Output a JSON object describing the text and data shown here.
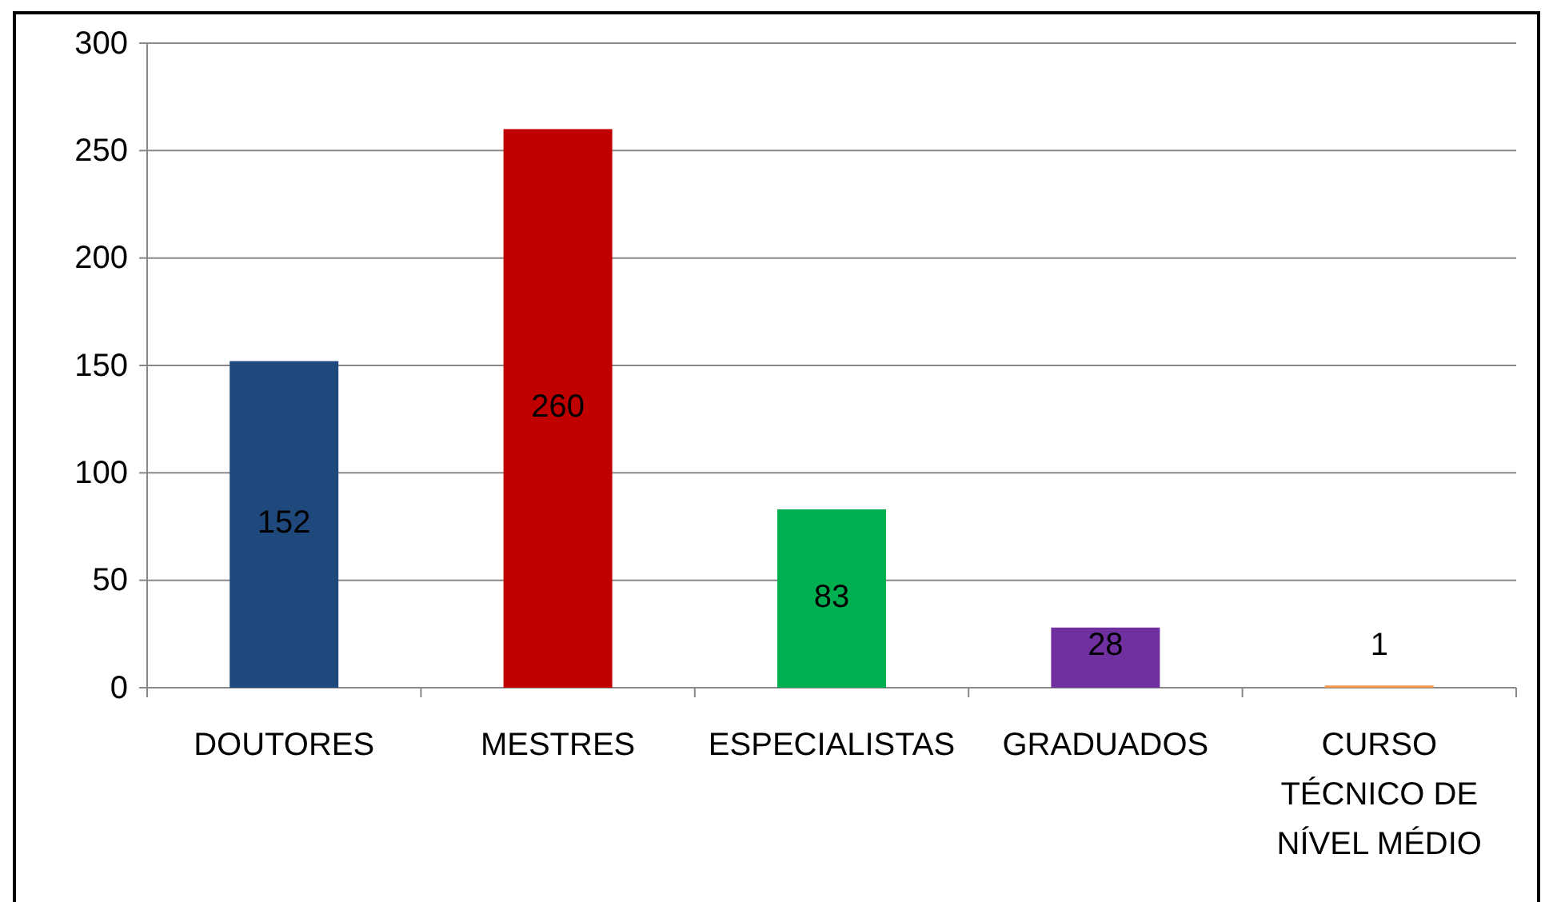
{
  "chart_data": {
    "type": "bar",
    "categories": [
      "DOUTORES",
      "MESTRES",
      "ESPECIALISTAS",
      "GRADUADOS",
      "CURSO TÉCNICO DE NÍVEL MÉDIO"
    ],
    "values": [
      152,
      260,
      83,
      28,
      1
    ],
    "colors": [
      "#1f497d",
      "#c00000",
      "#00b050",
      "#7030a0",
      "#f79646"
    ],
    "ylim": [
      0,
      300
    ],
    "yticks": [
      0,
      50,
      100,
      150,
      200,
      250,
      300
    ],
    "grid": "y",
    "data_labels": true
  }
}
